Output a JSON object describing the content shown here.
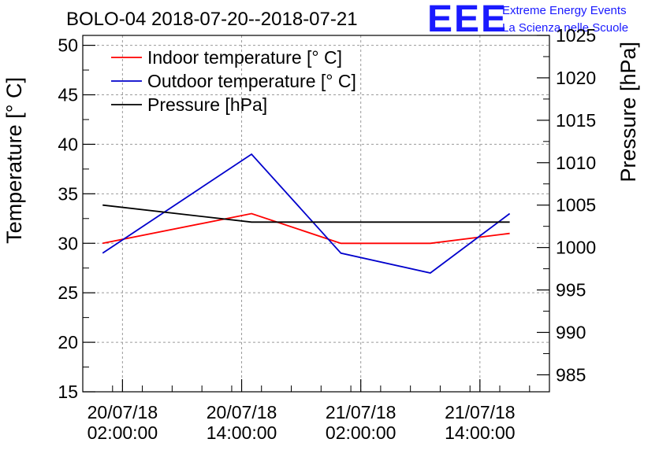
{
  "logo": {
    "mark": "EEE",
    "line1": "Extreme Energy Events",
    "line2": "La Scienza nelle Scuole"
  },
  "chart_data": {
    "type": "line",
    "title": "BOLO-04 2018-07-20--2018-07-21",
    "ylabel": "Temperature [° C]",
    "y2label": "Pressure [hPa]",
    "ylim": [
      15,
      51
    ],
    "y2lim": [
      983,
      1025
    ],
    "yticks": [
      15,
      20,
      25,
      30,
      35,
      40,
      45,
      50
    ],
    "y2ticks": [
      985,
      990,
      995,
      1000,
      1005,
      1010,
      1015,
      1020,
      1025
    ],
    "x": [
      "2018-07-20 00:00",
      "2018-07-20 15:00",
      "2018-07-21 00:00",
      "2018-07-21 09:00",
      "2018-07-21 17:00"
    ],
    "xlim": [
      "2018-07-19 22:00",
      "2018-07-21 21:00"
    ],
    "xticks": [
      {
        "at": "2018-07-20 02:00",
        "line1": "20/07/18",
        "line2": "02:00:00"
      },
      {
        "at": "2018-07-20 14:00",
        "line1": "20/07/18",
        "line2": "14:00:00"
      },
      {
        "at": "2018-07-21 02:00",
        "line1": "21/07/18",
        "line2": "02:00:00"
      },
      {
        "at": "2018-07-21 14:00",
        "line1": "21/07/18",
        "line2": "14:00:00"
      }
    ],
    "grid": true,
    "legend": "top-left",
    "series": [
      {
        "name": "Indoor temperature [° C]",
        "axis": "left",
        "color": "#ff0000",
        "values": [
          30,
          33,
          30,
          30,
          31
        ]
      },
      {
        "name": "Outdoor temperature [° C]",
        "axis": "left",
        "color": "#0000cc",
        "values": [
          29,
          39,
          29,
          27,
          33
        ]
      },
      {
        "name": "Pressure [hPa]",
        "axis": "right",
        "color": "#000000",
        "values": [
          1005,
          1003,
          1003,
          1003,
          1003
        ]
      }
    ]
  }
}
